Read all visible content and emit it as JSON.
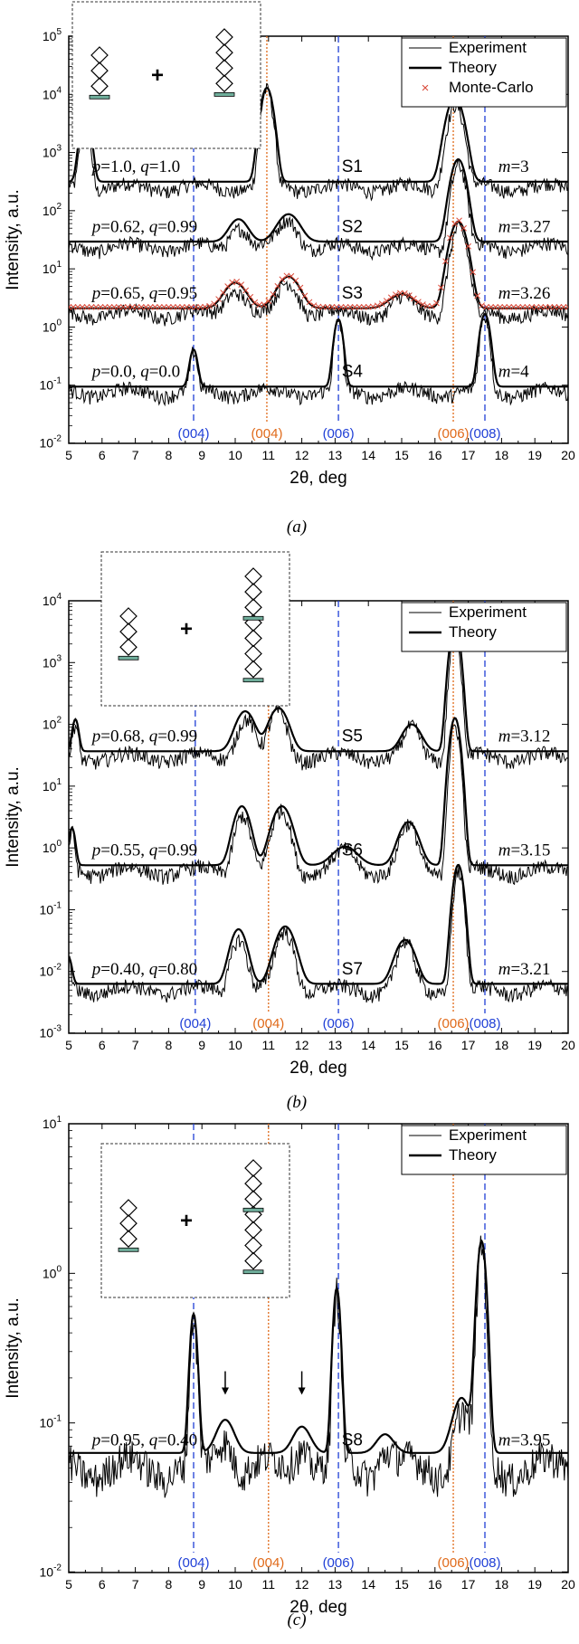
{
  "chart_data": [
    {
      "type": "line",
      "panel_label": "(a)",
      "xlabel": "2θ, deg",
      "ylabel": "Intensity, a.u.",
      "x_ticks": [
        "5",
        "6",
        "7",
        "8",
        "9",
        "10",
        "11",
        "12",
        "13",
        "14",
        "15",
        "16",
        "17",
        "18",
        "19",
        "20"
      ],
      "xlim": [
        5,
        20
      ],
      "y_scale": "log",
      "ylim": [
        0.01,
        100000
      ],
      "y_ticks": [
        {
          "base": "10",
          "exp": "-2",
          "value": 0.01
        },
        {
          "base": "10",
          "exp": "-1",
          "value": 0.1
        },
        {
          "base": "10",
          "exp": "0",
          "value": 1
        },
        {
          "base": "10",
          "exp": "1",
          "value": 10
        },
        {
          "base": "10",
          "exp": "2",
          "value": 100
        },
        {
          "base": "10",
          "exp": "3",
          "value": 1000
        },
        {
          "base": "10",
          "exp": "4",
          "value": 10000
        },
        {
          "base": "10",
          "exp": "5",
          "value": 100000
        }
      ],
      "legend": {
        "placement": "top-right",
        "entries": [
          "Experiment",
          "Theory",
          "Monte-Carlo"
        ]
      },
      "reflections": [
        {
          "label": "(004)",
          "x": 8.75,
          "color": "#1f3fd6",
          "style": "dashed"
        },
        {
          "label": "(004)",
          "x": 10.95,
          "color": "#e06a1a",
          "style": "dotted"
        },
        {
          "label": "(006)",
          "x": 13.1,
          "color": "#1f3fd6",
          "style": "dashed"
        },
        {
          "label": "(006)",
          "x": 16.55,
          "color": "#e06a1a",
          "style": "dotted"
        },
        {
          "label": "(008)",
          "x": 17.5,
          "color": "#1f3fd6",
          "style": "dashed"
        }
      ],
      "series": [
        {
          "sample": "S1",
          "params": {
            "p": "1.0",
            "q": "1.0"
          },
          "m": "3",
          "base": 300,
          "peaks": [
            {
              "x": 5.5,
              "h": 5000,
              "w": 0.15
            },
            {
              "x": 10.95,
              "h": 12000,
              "w": 0.18
            },
            {
              "x": 16.6,
              "h": 8000,
              "w": 0.25
            }
          ]
        },
        {
          "sample": "S2",
          "params": {
            "p": "0.62",
            "q": "0.99"
          },
          "m": "3.27",
          "base": 28,
          "peaks": [
            {
              "x": 10.1,
              "h": 40,
              "w": 0.3
            },
            {
              "x": 11.6,
              "h": 55,
              "w": 0.35
            },
            {
              "x": 16.7,
              "h": 700,
              "w": 0.22
            }
          ]
        },
        {
          "sample": "S3",
          "params": {
            "p": "0.65",
            "q": "0.95"
          },
          "m": "3.26",
          "base": 2,
          "peaks": [
            {
              "x": 10.0,
              "h": 3.5,
              "w": 0.35
            },
            {
              "x": 11.6,
              "h": 5,
              "w": 0.35
            },
            {
              "x": 15.0,
              "h": 1.5,
              "w": 0.4
            },
            {
              "x": 16.7,
              "h": 60,
              "w": 0.25
            }
          ]
        },
        {
          "sample": "S4",
          "params": {
            "p": "0.0",
            "q": "0.0"
          },
          "m": "4",
          "base": 0.09,
          "peaks": [
            {
              "x": 8.75,
              "h": 0.3,
              "w": 0.12
            },
            {
              "x": 13.1,
              "h": 1.2,
              "w": 0.13
            },
            {
              "x": 17.5,
              "h": 1.5,
              "w": 0.15
            }
          ]
        }
      ]
    },
    {
      "type": "line",
      "panel_label": "(b)",
      "xlabel": "2θ, deg",
      "ylabel": "Intensity, a.u.",
      "x_ticks": [
        "5",
        "6",
        "7",
        "8",
        "9",
        "10",
        "11",
        "12",
        "13",
        "14",
        "15",
        "16",
        "17",
        "18",
        "19",
        "20"
      ],
      "xlim": [
        5,
        20
      ],
      "y_scale": "log",
      "ylim": [
        0.001,
        10000
      ],
      "y_ticks": [
        {
          "base": "10",
          "exp": "-3",
          "value": 0.001
        },
        {
          "base": "10",
          "exp": "-2",
          "value": 0.01
        },
        {
          "base": "10",
          "exp": "-1",
          "value": 0.1
        },
        {
          "base": "10",
          "exp": "0",
          "value": 1
        },
        {
          "base": "10",
          "exp": "1",
          "value": 10
        },
        {
          "base": "10",
          "exp": "2",
          "value": 100
        },
        {
          "base": "10",
          "exp": "3",
          "value": 1000
        },
        {
          "base": "10",
          "exp": "4",
          "value": 10000
        }
      ],
      "legend": {
        "placement": "top-right",
        "entries": [
          "Experiment",
          "Theory"
        ]
      },
      "reflections": [
        {
          "label": "(004)",
          "x": 8.8,
          "color": "#1f3fd6",
          "style": "dashed"
        },
        {
          "label": "(004)",
          "x": 11.0,
          "color": "#e06a1a",
          "style": "dotted"
        },
        {
          "label": "(006)",
          "x": 13.1,
          "color": "#1f3fd6",
          "style": "dashed"
        },
        {
          "label": "(006)",
          "x": 16.55,
          "color": "#e06a1a",
          "style": "dotted"
        },
        {
          "label": "(008)",
          "x": 17.5,
          "color": "#1f3fd6",
          "style": "dashed"
        }
      ],
      "series": [
        {
          "sample": "S5",
          "params": {
            "p": "0.68",
            "q": "0.99"
          },
          "m": "3.12",
          "base": 35,
          "peaks": [
            {
              "x": 5.2,
              "h": 80,
              "w": 0.1
            },
            {
              "x": 10.3,
              "h": 120,
              "w": 0.3
            },
            {
              "x": 11.3,
              "h": 140,
              "w": 0.3
            },
            {
              "x": 15.3,
              "h": 60,
              "w": 0.3
            },
            {
              "x": 16.6,
              "h": 4000,
              "w": 0.15
            }
          ]
        },
        {
          "sample": "S6",
          "params": {
            "p": "0.55",
            "q": "0.99"
          },
          "m": "3.15",
          "base": 0.5,
          "peaks": [
            {
              "x": 5.1,
              "h": 1.5,
              "w": 0.1
            },
            {
              "x": 10.2,
              "h": 4,
              "w": 0.25
            },
            {
              "x": 11.4,
              "h": 4,
              "w": 0.3
            },
            {
              "x": 13.3,
              "h": 0.5,
              "w": 0.4
            },
            {
              "x": 15.2,
              "h": 2,
              "w": 0.3
            },
            {
              "x": 16.6,
              "h": 120,
              "w": 0.15
            }
          ]
        },
        {
          "sample": "S7",
          "params": {
            "p": "0.40",
            "q": "0.80"
          },
          "m": "3.21",
          "base": 0.006,
          "peaks": [
            {
              "x": 5.0,
              "h": 0.01,
              "w": 0.1
            },
            {
              "x": 10.1,
              "h": 0.04,
              "w": 0.25
            },
            {
              "x": 11.5,
              "h": 0.045,
              "w": 0.3
            },
            {
              "x": 15.1,
              "h": 0.025,
              "w": 0.3
            },
            {
              "x": 16.7,
              "h": 0.5,
              "w": 0.15
            }
          ]
        }
      ]
    },
    {
      "type": "line",
      "panel_label": "(c)",
      "xlabel": "2θ, deg",
      "ylabel": "Intensity, a.u.",
      "x_ticks": [
        "5",
        "6",
        "7",
        "8",
        "9",
        "10",
        "11",
        "12",
        "13",
        "14",
        "15",
        "16",
        "17",
        "18",
        "19",
        "20"
      ],
      "xlim": [
        5,
        20
      ],
      "y_scale": "log",
      "ylim": [
        0.01,
        10
      ],
      "y_ticks": [
        {
          "base": "10",
          "exp": "-2",
          "value": 0.01
        },
        {
          "base": "10",
          "exp": "-1",
          "value": 0.1
        },
        {
          "base": "10",
          "exp": "0",
          "value": 1
        },
        {
          "base": "10",
          "exp": "1",
          "value": 10
        }
      ],
      "legend": {
        "placement": "top-right",
        "entries": [
          "Experiment",
          "Theory"
        ]
      },
      "reflections": [
        {
          "label": "(004)",
          "x": 8.75,
          "color": "#1f3fd6",
          "style": "dashed"
        },
        {
          "label": "(004)",
          "x": 11.0,
          "color": "#e06a1a",
          "style": "dotted"
        },
        {
          "label": "(006)",
          "x": 13.1,
          "color": "#1f3fd6",
          "style": "dashed"
        },
        {
          "label": "(006)",
          "x": 16.55,
          "color": "#e06a1a",
          "style": "dotted"
        },
        {
          "label": "(008)",
          "x": 17.5,
          "color": "#1f3fd6",
          "style": "dashed"
        }
      ],
      "arrows": [
        {
          "x": 9.7
        },
        {
          "x": 12.0
        }
      ],
      "series": [
        {
          "sample": "S8",
          "params": {
            "p": "0.95",
            "q": "0.40"
          },
          "m": "3.95",
          "base": 0.06,
          "peaks": [
            {
              "x": 8.75,
              "h": 0.45,
              "w": 0.12
            },
            {
              "x": 9.7,
              "h": 0.04,
              "w": 0.3
            },
            {
              "x": 12.0,
              "h": 0.03,
              "w": 0.3
            },
            {
              "x": 13.05,
              "h": 0.7,
              "w": 0.12
            },
            {
              "x": 14.5,
              "h": 0.02,
              "w": 0.3
            },
            {
              "x": 16.8,
              "h": 0.08,
              "w": 0.3
            },
            {
              "x": 17.4,
              "h": 1.5,
              "w": 0.15
            }
          ]
        }
      ]
    }
  ],
  "labels": {
    "legend_experiment": "Experiment",
    "legend_theory": "Theory",
    "legend_montecarlo": "Monte-Carlo",
    "plus": "+",
    "m_prefix": "m",
    "p_prefix": "p",
    "q_prefix": "q"
  },
  "colors": {
    "blue": "#1f3fd6",
    "orange": "#e06a1a",
    "montecarlo": "#d94a3a",
    "inset_bar": "#6fae9b"
  }
}
